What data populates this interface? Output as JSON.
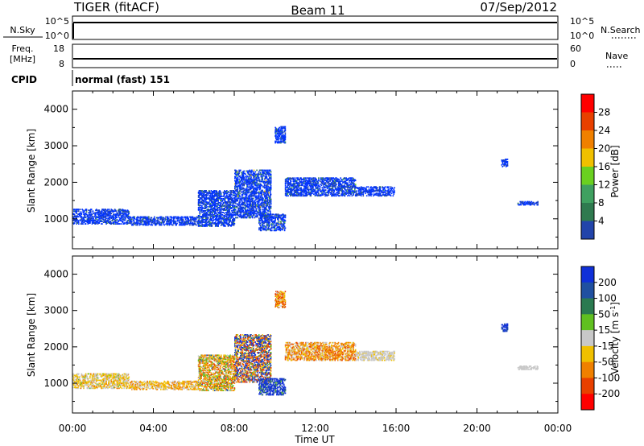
{
  "header": {
    "radar": "TIGER (fitACF)",
    "beam": "Beam 11",
    "date": "07/Sep/2012"
  },
  "strip_panels": {
    "nsky": {
      "label": "N.Sky",
      "ticks": [
        "10^5",
        "10^0"
      ]
    },
    "nsearch": {
      "label": "N.Search",
      "ticks": [
        "10^5",
        "10^0"
      ]
    },
    "freq": {
      "label_line1": "Freq.",
      "label_line2": "[MHz]",
      "ticks": [
        "18",
        "8"
      ]
    },
    "nave": {
      "label": "Nave",
      "ticks": [
        "60",
        "0"
      ]
    },
    "cpid": {
      "label": "CPID",
      "value": "normal (fast) 151"
    }
  },
  "colors": {
    "power_scale": [
      "#0033ff",
      "#2244aa",
      "#2f7a4f",
      "#3fa060",
      "#6ad020",
      "#f0c000",
      "#f08000",
      "#e84000",
      "#ff0000"
    ],
    "velocity_scale": [
      "#1030d8",
      "#2050a0",
      "#2a7a50",
      "#60c020",
      "#c8c8c8",
      "#f0c000",
      "#f08000",
      "#e84000",
      "#ff0000"
    ]
  },
  "chart_data": [
    {
      "type": "heatmap",
      "panel": "power",
      "ylabel": "Slant Range [km]",
      "ylim": [
        180,
        4500
      ],
      "xlim": [
        0,
        24
      ],
      "yticks": [
        "1000",
        "2000",
        "3000",
        "4000"
      ],
      "colorbar": {
        "label": "Power [dB]",
        "ticks": [
          "28",
          "24",
          "20",
          "16",
          "12",
          "8",
          "4"
        ],
        "range": [
          0,
          32
        ]
      },
      "scatter_bands": [
        {
          "t0": 0.0,
          "t1": 2.8,
          "r0": 880,
          "r1": 1280,
          "level": 0.18
        },
        {
          "t0": 2.8,
          "t1": 6.2,
          "r0": 850,
          "r1": 1080,
          "level": 0.2
        },
        {
          "t0": 6.2,
          "t1": 8.0,
          "r0": 820,
          "r1": 1800,
          "level": 0.3
        },
        {
          "t0": 8.0,
          "t1": 9.8,
          "r0": 1050,
          "r1": 2350,
          "level": 0.42
        },
        {
          "t0": 9.2,
          "t1": 10.5,
          "r0": 700,
          "r1": 1150,
          "level": 0.48
        },
        {
          "t0": 10.5,
          "t1": 14.0,
          "r0": 1650,
          "r1": 2150,
          "level": 0.28
        },
        {
          "t0": 14.0,
          "t1": 15.9,
          "r0": 1650,
          "r1": 1900,
          "level": 0.2
        },
        {
          "t0": 10.0,
          "t1": 10.5,
          "r0": 3100,
          "r1": 3550,
          "level": 0.3
        },
        {
          "t0": 21.2,
          "t1": 21.5,
          "r0": 2450,
          "r1": 2650,
          "level": 0.15
        },
        {
          "t0": 22.0,
          "t1": 23.0,
          "r0": 1400,
          "r1": 1500,
          "level": 0.15
        }
      ]
    },
    {
      "type": "heatmap",
      "panel": "velocity",
      "ylabel": "Slant Range [km]",
      "xlabel": "Time UT",
      "ylim": [
        180,
        4500
      ],
      "xlim": [
        0,
        24
      ],
      "yticks": [
        "1000",
        "2000",
        "3000",
        "4000"
      ],
      "xticks": [
        "00:00",
        "04:00",
        "08:00",
        "12:00",
        "16:00",
        "20:00",
        "00:00"
      ],
      "colorbar": {
        "label": "Velocity [m s",
        "label_sup": "-1",
        "label_close": "]",
        "ticks": [
          "200",
          "100",
          "50",
          "15",
          "-15",
          "-50",
          "-100",
          "-200"
        ],
        "range": [
          -250,
          250
        ]
      },
      "scatter_bands": [
        {
          "t0": 0.0,
          "t1": 2.8,
          "r0": 880,
          "r1": 1280,
          "vmin": -60,
          "vmax": 20
        },
        {
          "t0": 2.8,
          "t1": 6.2,
          "r0": 850,
          "r1": 1080,
          "vmin": -80,
          "vmax": 10
        },
        {
          "t0": 6.2,
          "t1": 8.0,
          "r0": 820,
          "r1": 1800,
          "vmin": -120,
          "vmax": 60
        },
        {
          "t0": 8.0,
          "t1": 9.8,
          "r0": 1050,
          "r1": 2350,
          "vmin": -200,
          "vmax": 200
        },
        {
          "t0": 9.2,
          "t1": 10.5,
          "r0": 700,
          "r1": 1150,
          "vmin": 40,
          "vmax": 220
        },
        {
          "t0": 10.5,
          "t1": 14.0,
          "r0": 1650,
          "r1": 2150,
          "vmin": -120,
          "vmax": 10
        },
        {
          "t0": 14.0,
          "t1": 15.9,
          "r0": 1650,
          "r1": 1900,
          "vmin": -20,
          "vmax": 10
        },
        {
          "t0": 10.0,
          "t1": 10.5,
          "r0": 3100,
          "r1": 3550,
          "vmin": -150,
          "vmax": 0
        },
        {
          "t0": 21.2,
          "t1": 21.5,
          "r0": 2450,
          "r1": 2650,
          "vmin": 60,
          "vmax": 200
        },
        {
          "t0": 22.0,
          "t1": 23.0,
          "r0": 1400,
          "r1": 1500,
          "vmin": -10,
          "vmax": 10
        }
      ]
    }
  ]
}
